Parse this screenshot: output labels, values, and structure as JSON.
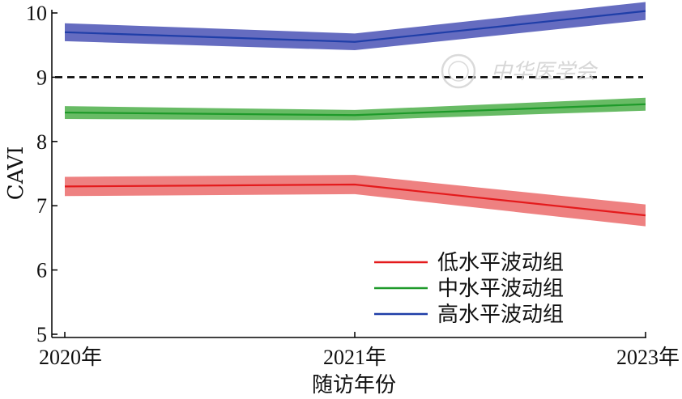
{
  "chart_data": {
    "type": "line",
    "x": [
      "2020年",
      "2021年",
      "2023年"
    ],
    "xlabel": "随访年份",
    "ylabel": "CAVI",
    "ylim": [
      5,
      10
    ],
    "yticks": [
      5,
      6,
      7,
      8,
      9,
      10
    ],
    "reference_line": {
      "y": 9,
      "style": "dashed",
      "color": "#000000"
    },
    "legend_position": "lower-right",
    "grid": false,
    "series": [
      {
        "name": "低水平波动组",
        "color": "#e41a1c",
        "band_color": "#eb6b6b",
        "values": [
          7.3,
          7.33,
          6.85
        ],
        "band": [
          0.15,
          0.15,
          0.17
        ]
      },
      {
        "name": "中水平波动组",
        "color": "#1e9a2a",
        "band_color": "#4daf4a",
        "values": [
          8.45,
          8.41,
          8.58
        ],
        "band": [
          0.1,
          0.08,
          0.1
        ]
      },
      {
        "name": "高水平波动组",
        "color": "#1f3ea8",
        "band_color": "#4a52b5",
        "values": [
          9.7,
          9.55,
          10.03
        ],
        "band": [
          0.14,
          0.13,
          0.14
        ]
      }
    ],
    "watermark": "中华医学会"
  }
}
